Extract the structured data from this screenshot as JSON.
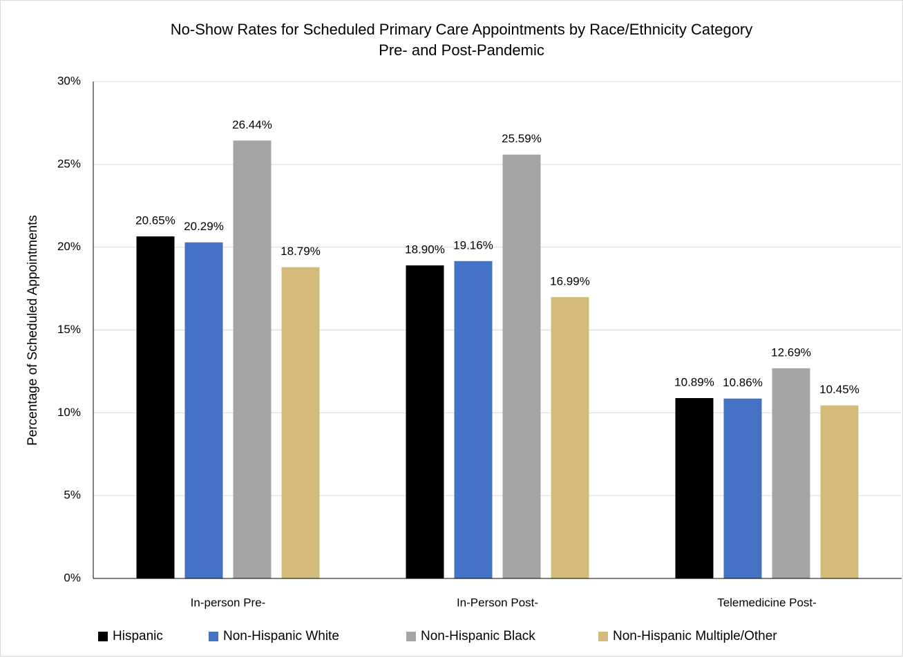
{
  "chart_data": {
    "type": "bar",
    "title": [
      "No-Show Rates for Scheduled Primary Care Appointments by Race/Ethnicity Category",
      "Pre- and Post-Pandemic"
    ],
    "y_label": "Percentage of Scheduled Appointments",
    "categories": [
      "In-person Pre-",
      "In-Person Post-",
      "Telemedicine Post-"
    ],
    "series": [
      {
        "name": "Hispanic",
        "color": "#000000",
        "values": [
          20.65,
          18.9,
          10.89
        ],
        "value_labels": [
          "20.65%",
          "18.90%",
          "10.89%"
        ]
      },
      {
        "name": "Non-Hispanic White",
        "color": "#4472c4",
        "values": [
          20.29,
          19.16,
          10.86
        ],
        "value_labels": [
          "20.29%",
          "19.16%",
          "10.86%"
        ]
      },
      {
        "name": "Non-Hispanic Black",
        "color": "#a5a5a5",
        "values": [
          26.44,
          25.59,
          12.69
        ],
        "value_labels": [
          "26.44%",
          "25.59%",
          "12.69%"
        ]
      },
      {
        "name": "Non-Hispanic Multiple/Other",
        "color": "#d3bc7b",
        "values": [
          18.79,
          16.99,
          10.45
        ],
        "value_labels": [
          "18.79%",
          "16.99%",
          "10.45%"
        ]
      }
    ],
    "ylim": [
      0,
      30
    ],
    "yticks": [
      {
        "value": 0,
        "label": "0%"
      },
      {
        "value": 5,
        "label": "5%"
      },
      {
        "value": 10,
        "label": "10%"
      },
      {
        "value": 15,
        "label": "15%"
      },
      {
        "value": 20,
        "label": "20%"
      },
      {
        "value": 25,
        "label": "25%"
      },
      {
        "value": 30,
        "label": "30%"
      }
    ],
    "grid": true,
    "legend": "bottom"
  }
}
